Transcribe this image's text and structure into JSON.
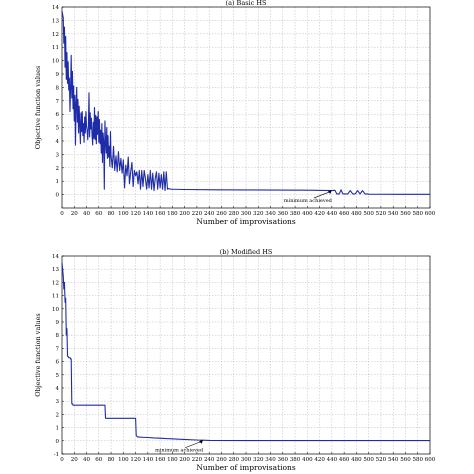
{
  "chart_data": [
    {
      "type": "line",
      "title": "(a) Basic HS",
      "xlabel": "Number of improvisations",
      "ylabel": "Objective function values",
      "xlim": [
        0,
        600
      ],
      "ylim": [
        -1,
        14
      ],
      "xticks": [
        0,
        20,
        40,
        60,
        80,
        100,
        120,
        140,
        160,
        180,
        200,
        220,
        240,
        260,
        280,
        300,
        320,
        340,
        360,
        380,
        400,
        420,
        440,
        460,
        480,
        500,
        520,
        540,
        560,
        580,
        600
      ],
      "yticks": [
        0,
        1,
        2,
        3,
        4,
        5,
        6,
        7,
        8,
        9,
        10,
        11,
        12,
        13,
        14
      ],
      "grid": true,
      "series_color": "#1f2ca8",
      "annotation": {
        "text": "minimum achieved",
        "x": 440,
        "y": 0.35
      },
      "x": [
        0,
        2,
        3,
        4,
        5,
        6,
        7,
        8,
        9,
        10,
        11,
        12,
        13,
        14,
        15,
        16,
        17,
        18,
        19,
        20,
        21,
        22,
        23,
        24,
        25,
        26,
        27,
        28,
        29,
        30,
        31,
        32,
        33,
        34,
        35,
        36,
        37,
        38,
        39,
        40,
        41,
        42,
        43,
        44,
        45,
        46,
        47,
        48,
        49,
        50,
        51,
        52,
        53,
        54,
        55,
        56,
        57,
        58,
        59,
        60,
        61,
        62,
        63,
        64,
        65,
        66,
        67,
        68,
        69,
        70,
        71,
        72,
        73,
        74,
        75,
        76,
        77,
        78,
        79,
        80,
        82,
        84,
        86,
        88,
        90,
        92,
        94,
        96,
        98,
        100,
        102,
        104,
        106,
        108,
        110,
        112,
        114,
        116,
        118,
        120,
        122,
        124,
        126,
        128,
        130,
        132,
        134,
        136,
        138,
        140,
        142,
        144,
        146,
        148,
        150,
        152,
        154,
        156,
        158,
        160,
        162,
        164,
        166,
        168,
        170,
        172,
        174,
        176,
        178,
        180,
        200,
        250,
        300,
        350,
        400,
        440,
        445,
        448,
        452,
        455,
        458,
        462,
        466,
        470,
        474,
        478,
        482,
        486,
        490,
        494,
        498,
        500,
        550,
        600
      ],
      "y": [
        13.7,
        13.2,
        11.3,
        12.5,
        9.5,
        11.8,
        8.6,
        10.6,
        8.3,
        9.9,
        7.8,
        8.7,
        6.2,
        8.0,
        10.4,
        7.2,
        9.2,
        6.4,
        8.1,
        5.5,
        7.4,
        3.7,
        6.8,
        8.0,
        5.4,
        7.1,
        4.6,
        6.6,
        5.2,
        3.8,
        6.1,
        4.7,
        6.2,
        4.4,
        5.3,
        3.9,
        5.8,
        4.6,
        6.2,
        5.1,
        4.8,
        4.1,
        5.0,
        7.6,
        4.3,
        6.1,
        4.9,
        5.7,
        4.4,
        3.7,
        5.4,
        4.2,
        6.5,
        4.1,
        5.9,
        3.8,
        5.8,
        4.5,
        6.2,
        3.9,
        5.6,
        3.8,
        4.8,
        3.1,
        5.3,
        2.4,
        4.6,
        3.9,
        0.4,
        5.5,
        4.0,
        3.1,
        5.0,
        2.7,
        4.4,
        2.8,
        3.6,
        2.1,
        4.7,
        2.9,
        2.0,
        3.6,
        1.8,
        2.9,
        1.7,
        3.2,
        1.8,
        2.7,
        1.6,
        2.6,
        0.5,
        2.2,
        1.4,
        2.8,
        0.8,
        1.7,
        2.4,
        0.6,
        1.8,
        1.4,
        1.7,
        0.8,
        1.8,
        0.4,
        1.8,
        0.6,
        1.8,
        1.2,
        0.4,
        1.5,
        0.5,
        1.8,
        0.4,
        1.6,
        0.3,
        1.2,
        1.7,
        0.4,
        1.6,
        0.5,
        1.5,
        0.4,
        1.7,
        0.3,
        1.7,
        0.4,
        0.45,
        0.42,
        0.4,
        0.4,
        0.38,
        0.36,
        0.35,
        0.34,
        0.33,
        0.3,
        0.32,
        0.05,
        0.05,
        0.35,
        0.05,
        0.05,
        0.05,
        0.3,
        0.05,
        0.05,
        0.3,
        0.05,
        0.3,
        0.05,
        0.05,
        0.03,
        0.02,
        0.02
      ]
    },
    {
      "type": "line",
      "title": "(b) Modified HS",
      "xlabel": "Number of improvisations",
      "ylabel": "Objective function values",
      "xlim": [
        0,
        600
      ],
      "ylim": [
        -1,
        14
      ],
      "xticks": [
        0,
        20,
        40,
        60,
        80,
        100,
        120,
        140,
        160,
        180,
        200,
        220,
        240,
        260,
        280,
        300,
        320,
        340,
        360,
        380,
        400,
        420,
        440,
        460,
        480,
        500,
        520,
        540,
        560,
        580,
        600
      ],
      "yticks": [
        -1,
        0,
        1,
        2,
        3,
        4,
        5,
        6,
        7,
        8,
        9,
        10,
        11,
        12,
        13,
        14
      ],
      "grid": true,
      "series_color": "#1f2ca8",
      "annotation": {
        "text": "minimum achieved",
        "x": 230,
        "y": 0.08
      },
      "x": [
        0,
        1,
        2,
        3,
        4,
        5,
        6,
        7,
        8,
        9,
        10,
        11,
        12,
        13,
        14,
        15,
        16,
        17,
        18,
        19,
        20,
        70,
        71,
        120,
        121,
        122,
        123,
        124,
        125,
        126,
        130,
        140,
        150,
        160,
        170,
        180,
        190,
        200,
        210,
        220,
        230,
        240,
        300,
        400,
        500,
        600
      ],
      "y": [
        13.5,
        13.0,
        12.5,
        11.5,
        12.0,
        10.5,
        10.8,
        8.0,
        8.5,
        6.4,
        6.4,
        6.3,
        6.3,
        6.3,
        6.2,
        6.2,
        2.8,
        2.8,
        2.7,
        2.7,
        2.7,
        2.7,
        1.7,
        1.7,
        0.4,
        0.35,
        0.3,
        0.3,
        0.28,
        0.28,
        0.27,
        0.25,
        0.22,
        0.2,
        0.17,
        0.15,
        0.12,
        0.1,
        0.08,
        0.06,
        0.05,
        0.03,
        0.02,
        0.02,
        0.02,
        0.02
      ]
    }
  ]
}
